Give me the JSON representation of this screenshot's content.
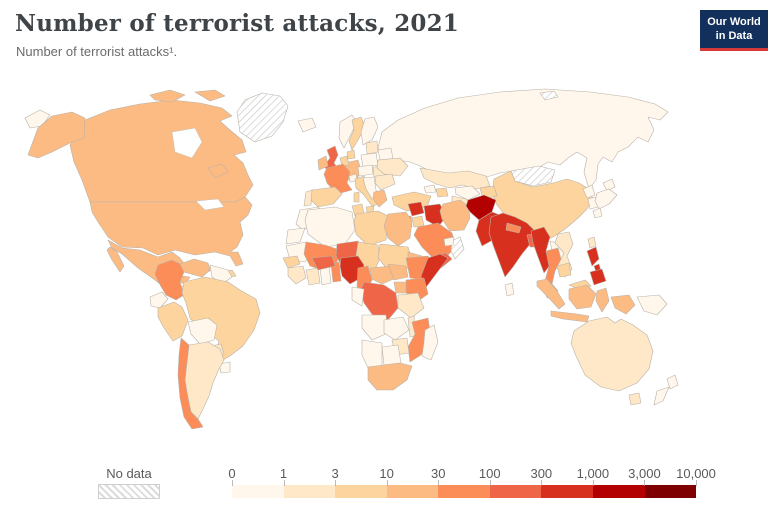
{
  "header": {
    "title": "Number of terrorist attacks, 2021",
    "subtitle": "Number of terrorist attacks¹.",
    "logo": {
      "line1": "Our World",
      "line2": "in Data",
      "bg": "#12305b",
      "accent": "#d7383a"
    }
  },
  "legend": {
    "no_data_label": "No data",
    "ticks": [
      "0",
      "1",
      "3",
      "10",
      "30",
      "100",
      "300",
      "1,000",
      "3,000",
      "10,000"
    ],
    "colors": [
      "#fff7ec",
      "#fee8c8",
      "#fdd49e",
      "#fdbb84",
      "#fc8d59",
      "#ef6548",
      "#d7301f",
      "#b30000",
      "#7f0000"
    ]
  },
  "chart_data": {
    "type": "choropleth",
    "title": "Number of terrorist attacks, 2021",
    "subtitle": "Number of terrorist attacks.",
    "year": 2021,
    "scale_type": "log-bins",
    "bins": [
      0,
      1,
      3,
      10,
      30,
      100,
      300,
      1000,
      3000,
      10000
    ],
    "bin_colors": [
      "#fff7ec",
      "#fee8c8",
      "#fdd49e",
      "#fdbb84",
      "#fc8d59",
      "#ef6548",
      "#d7301f",
      "#b30000",
      "#7f0000"
    ],
    "no_data": {
      "label": "No data",
      "pattern": "diagonal-hatch"
    },
    "countries": {
      "canada": [
        "Canada",
        "10-30",
        "#fdbb84"
      ],
      "united-states": [
        "United States",
        "10-30",
        "#fdbb84"
      ],
      "greenland": [
        "Greenland",
        "No data",
        "no-data"
      ],
      "iceland": [
        "Iceland",
        "0-1",
        "#fff7ec"
      ],
      "mexico": [
        "Mexico",
        "10-30",
        "#fdbb84"
      ],
      "central-america": [
        "Central America",
        "1-3",
        "#fee8c8"
      ],
      "cuba": [
        "Cuba",
        "0-1",
        "#fff7ec"
      ],
      "hispaniola": [
        "Haiti & Dominican Republic",
        "3-10",
        "#fdd49e"
      ],
      "colombia": [
        "Colombia",
        "30-100",
        "#fc8d59"
      ],
      "venezuela": [
        "Venezuela",
        "10-30",
        "#fdbb84"
      ],
      "guyanas": [
        "Guyana & Suriname",
        "0-1",
        "#fff7ec"
      ],
      "ecuador": [
        "Ecuador",
        "0-1",
        "#fff7ec"
      ],
      "peru": [
        "Peru",
        "3-10",
        "#fdd49e"
      ],
      "brazil": [
        "Brazil",
        "3-10",
        "#fdd49e"
      ],
      "bolivia": [
        "Bolivia",
        "0-1",
        "#fff7ec"
      ],
      "paraguay": [
        "Paraguay",
        "1-3",
        "#fee8c8"
      ],
      "uruguay": [
        "Uruguay",
        "0-1",
        "#fff7ec"
      ],
      "argentina": [
        "Argentina",
        "1-3",
        "#fee8c8"
      ],
      "chile": [
        "Chile",
        "30-100",
        "#fc8d59"
      ],
      "united-kingdom": [
        "United Kingdom",
        "100-300",
        "#ef6548"
      ],
      "ireland": [
        "Ireland",
        "10-30",
        "#fdbb84"
      ],
      "norway": [
        "Norway",
        "0-1",
        "#fff7ec"
      ],
      "sweden": [
        "Sweden",
        "3-10",
        "#fdd49e"
      ],
      "finland": [
        "Finland",
        "0-1",
        "#fff7ec"
      ],
      "denmark": [
        "Denmark",
        "3-10",
        "#fdd49e"
      ],
      "germany": [
        "Germany",
        "10-30",
        "#fdbb84"
      ],
      "benelux": [
        "Netherlands & Belgium",
        "3-10",
        "#fdd49e"
      ],
      "france": [
        "France",
        "30-100",
        "#fc8d59"
      ],
      "spain": [
        "Spain",
        "3-10",
        "#fdd49e"
      ],
      "portugal": [
        "Portugal",
        "1-3",
        "#fee8c8"
      ],
      "italy": [
        "Italy",
        "3-10",
        "#fdd49e"
      ],
      "switzerland": [
        "Switzerland",
        "0-1",
        "#fff7ec"
      ],
      "poland": [
        "Poland",
        "0-1",
        "#fff7ec"
      ],
      "czech-austria": [
        "Czechia & Austria",
        "0-1",
        "#fff7ec"
      ],
      "hungary-slovakia": [
        "Hungary & Slovakia",
        "1-3",
        "#fee8c8"
      ],
      "baltics": [
        "Baltic states",
        "1-3",
        "#fee8c8"
      ],
      "belarus": [
        "Belarus",
        "0-1",
        "#fff7ec"
      ],
      "ukraine": [
        "Ukraine",
        "1-3",
        "#fee8c8"
      ],
      "romania-bulgaria": [
        "Romania & Bulgaria",
        "1-3",
        "#fee8c8"
      ],
      "balkans": [
        "Western Balkans",
        "0-1",
        "#fff7ec"
      ],
      "greece": [
        "Greece",
        "10-30",
        "#fdbb84"
      ],
      "russia": [
        "Russia",
        "0-1",
        "#fff7ec"
      ],
      "svalbard": [
        "Svalbard",
        "No data",
        "no-data"
      ],
      "kazakhstan": [
        "Kazakhstan",
        "1-3",
        "#fee8c8"
      ],
      "uzbekistan": [
        "Uzbekistan",
        "0-1",
        "#fff7ec"
      ],
      "turkmenistan": [
        "Turkmenistan",
        "1-3",
        "#fee8c8"
      ],
      "kyrgyzstan-tajikistan": [
        "Kyrgyzstan & Tajikistan",
        "3-10",
        "#fdd49e"
      ],
      "georgia": [
        "Georgia",
        "0-1",
        "#fff7ec"
      ],
      "azerbaijan": [
        "Azerbaijan",
        "3-10",
        "#fdd49e"
      ],
      "turkey": [
        "Turkey",
        "3-10",
        "#fdd49e"
      ],
      "syria": [
        "Syria",
        "300-1,000",
        "#d7301f"
      ],
      "iraq": [
        "Iraq",
        "300-1,000",
        "#d7301f"
      ],
      "jordan": [
        "Jordan",
        "3-10",
        "#fdd49e"
      ],
      "israel": [
        "Israel",
        "30-100",
        "#fc8d59"
      ],
      "saudi-arabia": [
        "Saudi Arabia",
        "30-100",
        "#fc8d59"
      ],
      "yemen": [
        "Yemen",
        "100-300",
        "#ef6548"
      ],
      "oman": [
        "Oman",
        "No data",
        "no-data"
      ],
      "uae": [
        "United Arab Emirates",
        "0-1",
        "#fff7ec"
      ],
      "iran": [
        "Iran",
        "10-30",
        "#fdbb84"
      ],
      "afghanistan": [
        "Afghanistan",
        "1,000-3,000",
        "#b30000"
      ],
      "pakistan": [
        "Pakistan",
        "300-1,000",
        "#d7301f"
      ],
      "india": [
        "India",
        "300-1,000",
        "#d7301f"
      ],
      "nepal": [
        "Nepal",
        "30-100",
        "#fc8d59"
      ],
      "bangladesh": [
        "Bangladesh",
        "100-300",
        "#ef6548"
      ],
      "sri-lanka": [
        "Sri Lanka",
        "0-1",
        "#fff7ec"
      ],
      "mongolia": [
        "Mongolia",
        "No data",
        "no-data"
      ],
      "china": [
        "China",
        "3-10",
        "#fdd49e"
      ],
      "north-korea": [
        "North Korea",
        "0-1",
        "#fff7ec"
      ],
      "south-korea": [
        "South Korea",
        "0-1",
        "#fff7ec"
      ],
      "japan": [
        "Japan",
        "0-1",
        "#fff7ec"
      ],
      "taiwan": [
        "Taiwan",
        "1-3",
        "#fee8c8"
      ],
      "myanmar": [
        "Myanmar",
        "300-1,000",
        "#d7301f"
      ],
      "thailand": [
        "Thailand",
        "30-100",
        "#fc8d59"
      ],
      "laos": [
        "Laos",
        "0-1",
        "#fff7ec"
      ],
      "vietnam": [
        "Vietnam",
        "1-3",
        "#fee8c8"
      ],
      "cambodia": [
        "Cambodia",
        "3-10",
        "#fdd49e"
      ],
      "malaysia": [
        "Malaysia",
        "3-10",
        "#fdd49e"
      ],
      "indonesia": [
        "Indonesia",
        "10-30",
        "#fdbb84"
      ],
      "philippines": [
        "Philippines",
        "300-1,000",
        "#d7301f"
      ],
      "papua-new-guinea": [
        "Papua New Guinea",
        "0-1",
        "#fff7ec"
      ],
      "australia": [
        "Australia",
        "1-3",
        "#fee8c8"
      ],
      "new-zealand": [
        "New Zealand",
        "0-1",
        "#fff7ec"
      ],
      "morocco": [
        "Morocco",
        "0-1",
        "#fff7ec"
      ],
      "western-sahara": [
        "Western Sahara",
        "0-1",
        "#fff7ec"
      ],
      "algeria": [
        "Algeria",
        "0-1",
        "#fff7ec"
      ],
      "tunisia": [
        "Tunisia",
        "3-10",
        "#fdd49e"
      ],
      "libya": [
        "Libya",
        "3-10",
        "#fdd49e"
      ],
      "egypt": [
        "Egypt",
        "10-30",
        "#fdbb84"
      ],
      "mauritania": [
        "Mauritania",
        "0-1",
        "#fff7ec"
      ],
      "mali": [
        "Mali",
        "30-100",
        "#fc8d59"
      ],
      "niger": [
        "Niger",
        "100-300",
        "#ef6548"
      ],
      "chad": [
        "Chad",
        "3-10",
        "#fdd49e"
      ],
      "sudan": [
        "Sudan",
        "3-10",
        "#fdd49e"
      ],
      "eritrea-djibouti": [
        "Eritrea & Djibouti",
        "10-30",
        "#fdbb84"
      ],
      "senegal": [
        "Senegal",
        "3-10",
        "#fdd49e"
      ],
      "guinea-region": [
        "Guinea, Sierra Leone & Liberia",
        "1-3",
        "#fee8c8"
      ],
      "ivory-coast": [
        "Côte d'Ivoire",
        "1-3",
        "#fee8c8"
      ],
      "ghana": [
        "Ghana",
        "0-1",
        "#fff7ec"
      ],
      "togo-benin": [
        "Togo & Benin",
        "30-100",
        "#fc8d59"
      ],
      "burkina-faso": [
        "Burkina Faso",
        "100-300",
        "#ef6548"
      ],
      "nigeria": [
        "Nigeria",
        "300-1,000",
        "#d7301f"
      ],
      "cameroon": [
        "Cameroon",
        "30-100",
        "#fc8d59"
      ],
      "central-african-republic": [
        "Central African Republic",
        "10-30",
        "#fdbb84"
      ],
      "south-sudan": [
        "South Sudan",
        "10-30",
        "#fdbb84"
      ],
      "ethiopia": [
        "Ethiopia",
        "30-100",
        "#fc8d59"
      ],
      "somalia": [
        "Somalia",
        "300-1,000",
        "#d7301f"
      ],
      "kenya": [
        "Kenya",
        "30-100",
        "#fc8d59"
      ],
      "uganda": [
        "Uganda",
        "10-30",
        "#fdbb84"
      ],
      "tanzania": [
        "Tanzania",
        "1-3",
        "#fee8c8"
      ],
      "drc": [
        "Democratic Republic of Congo",
        "100-300",
        "#ef6548"
      ],
      "congo-gabon": [
        "Congo & Gabon",
        "0-1",
        "#fff7ec"
      ],
      "angola": [
        "Angola",
        "0-1",
        "#fff7ec"
      ],
      "zambia": [
        "Zambia",
        "0-1",
        "#fff7ec"
      ],
      "malawi": [
        "Malawi",
        "1-3",
        "#fee8c8"
      ],
      "mozambique": [
        "Mozambique",
        "30-100",
        "#fc8d59"
      ],
      "zimbabwe": [
        "Zimbabwe",
        "1-3",
        "#fee8c8"
      ],
      "botswana": [
        "Botswana",
        "0-1",
        "#fff7ec"
      ],
      "namibia": [
        "Namibia",
        "0-1",
        "#fff7ec"
      ],
      "south-africa": [
        "South Africa",
        "10-30",
        "#fdbb84"
      ],
      "madagascar": [
        "Madagascar",
        "0-1",
        "#fff7ec"
      ]
    }
  }
}
